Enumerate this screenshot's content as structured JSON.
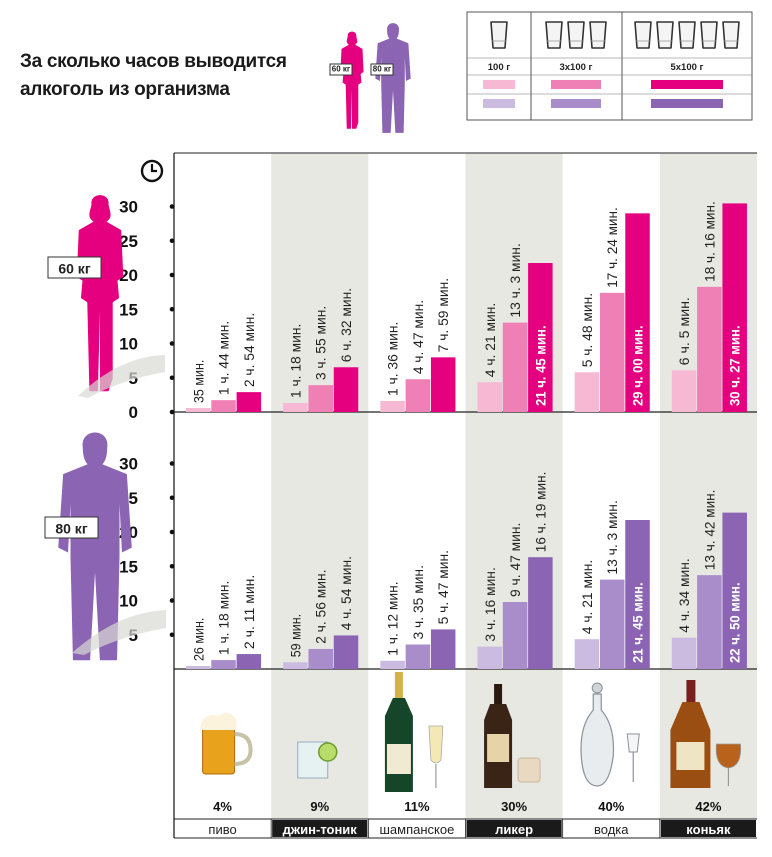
{
  "title": {
    "line1": "За сколько часов выводится",
    "line2": "алкоголь из организма"
  },
  "weights": {
    "w60": "60 кг",
    "w80": "80 кг"
  },
  "legend": {
    "columns": [
      "100 г",
      "3x100 г",
      "5x100 г"
    ]
  },
  "colors": {
    "pink_light": "#f6b8d2",
    "pink_mid": "#ee80b6",
    "pink_dark": "#e4007f",
    "purple_light": "#cbbbe0",
    "purple_mid": "#a88dca",
    "purple_dark": "#8b64b3",
    "band": "#e8e8e3"
  },
  "drinks": [
    {
      "name": "пиво",
      "abv": "4%",
      "highlight": false
    },
    {
      "name": "джин-тоник",
      "abv": "9%",
      "highlight": true
    },
    {
      "name": "шампанское",
      "abv": "11%",
      "highlight": false
    },
    {
      "name": "ликер",
      "abv": "30%",
      "highlight": true
    },
    {
      "name": "водка",
      "abv": "40%",
      "highlight": false
    },
    {
      "name": "коньяк",
      "abv": "42%",
      "highlight": true
    }
  ],
  "chart_data": {
    "type": "bar",
    "categories": [
      "пиво",
      "джин-тоник",
      "шампанское",
      "ликер",
      "водка",
      "коньяк"
    ],
    "yticks_60": [
      0,
      5,
      10,
      15,
      20,
      25,
      30
    ],
    "yticks_80": [
      5,
      10,
      15,
      20,
      25,
      30
    ],
    "ylim": [
      0,
      31
    ],
    "panels": [
      {
        "weight": "60 кг",
        "values": [
          [
            0.58,
            1.73,
            2.9
          ],
          [
            1.3,
            3.92,
            6.53
          ],
          [
            1.6,
            4.78,
            7.98
          ],
          [
            4.35,
            13.05,
            21.75
          ],
          [
            5.8,
            17.4,
            29.0
          ],
          [
            6.08,
            18.27,
            30.45
          ]
        ],
        "labels": [
          [
            "35 мин.",
            "1 ч. 44 мин.",
            "2 ч. 54 мин."
          ],
          [
            "1 ч. 18 мин.",
            "3 ч. 55 мин.",
            "6 ч. 32 мин."
          ],
          [
            "1 ч. 36 мин.",
            "4 ч. 47 мин.",
            "7 ч. 59 мин."
          ],
          [
            "4 ч. 21 мин.",
            "13 ч. 3 мин.",
            "21 ч. 45 мин."
          ],
          [
            "5 ч. 48 мин.",
            "17 ч. 24 мин.",
            "29 ч. 00 мин."
          ],
          [
            "6 ч. 5 мин.",
            "18 ч. 16 мин.",
            "30 ч. 27 мин."
          ]
        ]
      },
      {
        "weight": "80 кг",
        "values": [
          [
            0.43,
            1.3,
            2.18
          ],
          [
            0.98,
            2.93,
            4.9
          ],
          [
            1.2,
            3.58,
            5.78
          ],
          [
            3.27,
            9.78,
            16.32
          ],
          [
            4.35,
            13.05,
            21.75
          ],
          [
            4.57,
            13.7,
            22.83
          ]
        ],
        "labels": [
          [
            "26 мин.",
            "1 ч. 18 мин.",
            "2 ч. 11 мин."
          ],
          [
            "59 мин.",
            "2 ч. 56 мин.",
            "4 ч. 54 мин."
          ],
          [
            "1 ч. 12 мин.",
            "3 ч. 35 мин.",
            "5 ч. 47 мин."
          ],
          [
            "3 ч. 16 мин.",
            "9 ч. 47 мин.",
            "16 ч. 19 мин."
          ],
          [
            "4 ч. 21 мин.",
            "13 ч. 3 мин.",
            "21 ч. 45 мин."
          ],
          [
            "4 ч. 34 мин.",
            "13 ч. 42 мин.",
            "22 ч. 50 мин."
          ]
        ]
      }
    ]
  }
}
